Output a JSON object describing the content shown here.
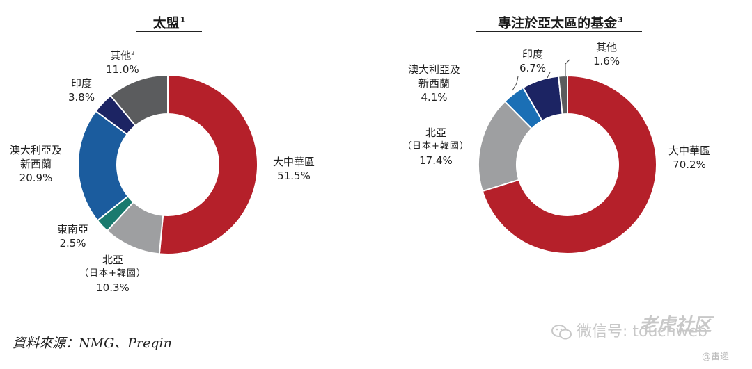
{
  "chart_data": [
    {
      "type": "pie",
      "variant": "donut",
      "title": "太盟",
      "title_sup": "1",
      "slices": [
        {
          "label": "大中華區",
          "sub": "",
          "value": 51.5,
          "text": "51.5%",
          "color": "#b5202a"
        },
        {
          "label": "北亞",
          "sub": "（日本+韓國）",
          "value": 10.3,
          "text": "10.3%",
          "color": "#9e9fa1"
        },
        {
          "label": "東南亞",
          "sub": "",
          "value": 2.5,
          "text": "2.5%",
          "color": "#1a7a6e"
        },
        {
          "label": "澳大利亞及",
          "sub": "新西蘭",
          "value": 20.9,
          "text": "20.9%",
          "color": "#1b5c9e"
        },
        {
          "label": "印度",
          "sub": "",
          "value": 3.8,
          "text": "3.8%",
          "color": "#1c2463"
        },
        {
          "label": "其他",
          "sub": "",
          "value": 11.0,
          "text": "11.0%",
          "color": "#5b5c5e",
          "label_sup": "2"
        }
      ]
    },
    {
      "type": "pie",
      "variant": "donut",
      "title": "專注於亞太區的基金",
      "title_sup": "3",
      "slices": [
        {
          "label": "大中華區",
          "sub": "",
          "value": 70.2,
          "text": "70.2%",
          "color": "#b5202a"
        },
        {
          "label": "北亞",
          "sub": "（日本+韓國）",
          "value": 17.4,
          "text": "17.4%",
          "color": "#9e9fa1"
        },
        {
          "label": "澳大利亞及",
          "sub": "新西蘭",
          "value": 4.1,
          "text": "4.1%",
          "color": "#1b6fb5"
        },
        {
          "label": "印度",
          "sub": "",
          "value": 6.7,
          "text": "6.7%",
          "color": "#1c2463"
        },
        {
          "label": "其他",
          "sub": "",
          "value": 1.6,
          "text": "1.6%",
          "color": "#5b5c5e"
        }
      ]
    }
  ],
  "footer": {
    "source": "資料來源：NMG、Preqin",
    "watermark_text": "微信号: touchweb",
    "watermark_brand": "老虎社区",
    "watermark_sub": "@雷递"
  }
}
